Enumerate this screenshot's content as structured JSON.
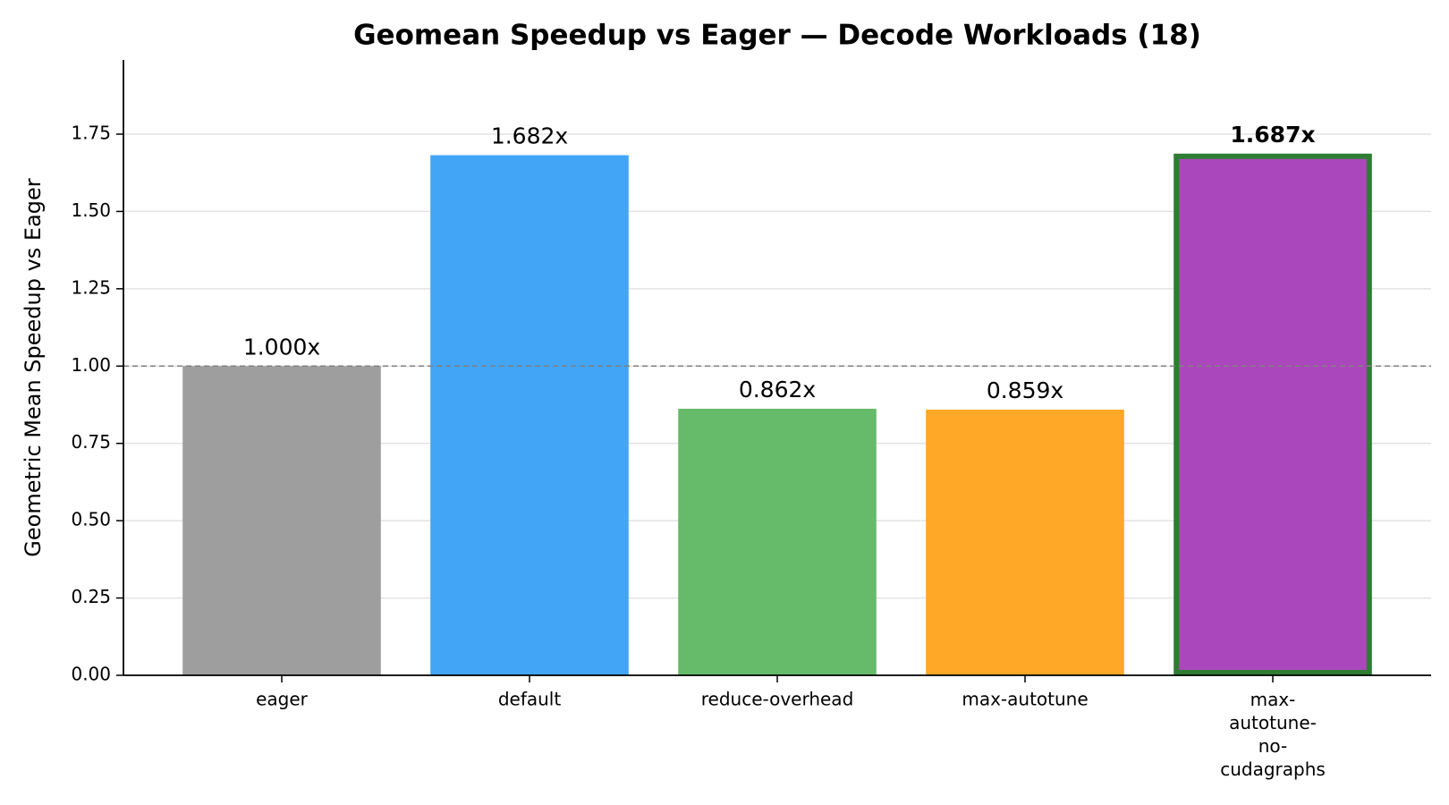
{
  "chart_data": {
    "type": "bar",
    "title": "Geomean Speedup vs Eager — Decode Workloads (18)",
    "y_label": "Geometric Mean Speedup vs Eager",
    "categories": [
      "eager",
      "default",
      "reduce-overhead",
      "max-autotune",
      "max-autotune-no-cudagraphs"
    ],
    "values": [
      1.0,
      1.682,
      0.862,
      0.859,
      1.687
    ],
    "value_labels": [
      "1.000x",
      "1.682x",
      "0.862x",
      "0.859x",
      "1.687x"
    ],
    "colors": [
      "#9e9e9e",
      "#42a5f5",
      "#66bb6a",
      "#ffa726",
      "#ab47bc"
    ],
    "highlight_index": 4,
    "highlight_color": "#2e7d32",
    "reference_line": 1.0,
    "ylim": [
      0,
      1.99
    ],
    "yticks": [
      {
        "value": 0,
        "label": "0.00"
      },
      {
        "value": 0.25,
        "label": "0.25"
      },
      {
        "value": 0.5,
        "label": "0.50"
      },
      {
        "value": 0.75,
        "label": "0.75"
      },
      {
        "value": 1,
        "label": "1.00"
      },
      {
        "value": 1.25,
        "label": "1.25"
      },
      {
        "value": 1.5,
        "label": "1.50"
      },
      {
        "value": 1.75,
        "label": "1.75"
      }
    ],
    "grid": true
  }
}
